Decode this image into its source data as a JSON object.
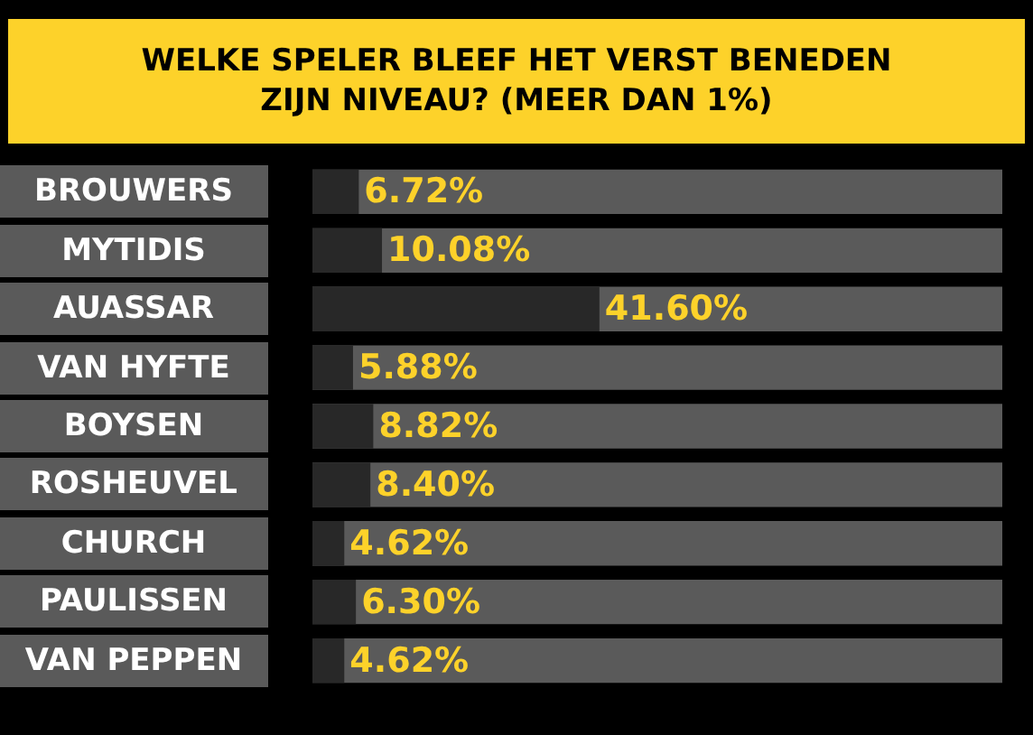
{
  "chart_data": {
    "type": "bar",
    "orientation": "horizontal",
    "title": "WELKE SPELER BLEEF HET VERST BENEDEN\nZIJN NIVEAU? (MEER DAN 1%)",
    "categories": [
      "BROUWERS",
      "MYTIDIS",
      "AUASSAR",
      "VAN HYFTE",
      "BOYSEN",
      "ROSHEUVEL",
      "CHURCH",
      "PAULISSEN",
      "VAN PEPPEN"
    ],
    "values": [
      6.72,
      10.08,
      41.6,
      5.88,
      8.82,
      8.4,
      4.62,
      6.3,
      4.62
    ],
    "value_labels": [
      "6.72%",
      "10.08%",
      "41.60%",
      "5.88%",
      "8.82%",
      "8.40%",
      "4.62%",
      "6.30%",
      "4.62%"
    ],
    "color": "#282828",
    "xlim": [
      0,
      100
    ],
    "legend": false
  }
}
